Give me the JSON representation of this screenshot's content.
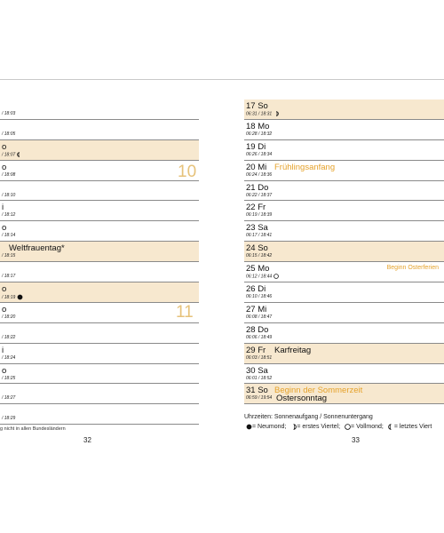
{
  "left_page": {
    "rows": [
      {
        "day": "",
        "sun": "/ 18:03",
        "hl": false
      },
      {
        "day": "",
        "sun": "/ 18:05",
        "hl": false
      },
      {
        "day": "o",
        "sun": "/ 18:07",
        "hl": true,
        "moon": "waning"
      },
      {
        "day": "o",
        "sun": "/ 18:08",
        "hl": false
      },
      {
        "day": "",
        "sun": "/ 18:10",
        "hl": false
      },
      {
        "day": "i",
        "sun": "/ 18:12",
        "hl": false
      },
      {
        "day": "o",
        "sun": "/ 18:14",
        "hl": false
      },
      {
        "day": "",
        "event": "Weltfrauentag*",
        "sun": "/ 18:15",
        "hl": true
      },
      {
        "day": "",
        "sun": "/ 18:17",
        "hl": false
      },
      {
        "day": "o",
        "sun": "/ 18:19",
        "hl": true,
        "moon": "new"
      },
      {
        "day": "o",
        "sun": "/ 18:20",
        "hl": false
      },
      {
        "day": "",
        "sun": "/ 18:22",
        "hl": false
      },
      {
        "day": "i",
        "sun": "/ 18:24",
        "hl": false
      },
      {
        "day": "o",
        "sun": "/ 18:25",
        "hl": false
      },
      {
        "day": "",
        "sun": "/ 18:27",
        "hl": false
      },
      {
        "day": "",
        "sun": "/ 18:29",
        "hl": false
      }
    ],
    "week_numbers": {
      "w10": "10",
      "w11": "11"
    },
    "footnote": "g nicht in allen Bundesländern",
    "page_number": "32"
  },
  "right_page": {
    "rows": [
      {
        "day": "17 So",
        "sun": "06:31 / 18:31",
        "hl": true,
        "moon": "first-quarter"
      },
      {
        "day": "18 Mo",
        "sun": "06:28 / 18:32",
        "hl": false
      },
      {
        "day": "19 Di",
        "sun": "06:26 / 18:34",
        "hl": false
      },
      {
        "day": "20 Mi",
        "event": "Frühlingsanfang",
        "event_color": "orange",
        "sun": "06:24 / 18:36",
        "hl": false
      },
      {
        "day": "21 Do",
        "sun": "06:22 / 18:37",
        "hl": false
      },
      {
        "day": "22 Fr",
        "sun": "06:19 / 18:39",
        "hl": false
      },
      {
        "day": "23 Sa",
        "sun": "06:17 / 18:41",
        "hl": false
      },
      {
        "day": "24 So",
        "sun": "06:15 / 18:42",
        "hl": true
      },
      {
        "day": "25 Mo",
        "note": "Beginn Osterferien",
        "sun": "06:12 / 18:44",
        "hl": false,
        "moon": "full"
      },
      {
        "day": "26 Di",
        "sun": "06:10 / 18:46",
        "hl": false
      },
      {
        "day": "27 Mi",
        "sun": "06:08 / 18:47",
        "hl": false
      },
      {
        "day": "28 Do",
        "sun": "06:06 / 18:49",
        "hl": false
      },
      {
        "day": "29 Fr",
        "event": "Karfreitag",
        "event_color": "black",
        "sun": "06:03 / 18:51",
        "hl": true
      },
      {
        "day": "30 Sa",
        "sun": "06:01 / 18:52",
        "hl": false
      },
      {
        "day": "31 So",
        "event": "Beginn der Sommerzeit",
        "event_color": "orange",
        "second": "Ostersonntag",
        "sun": "06:59 / 19:54",
        "hl": true
      }
    ],
    "legend_title": "Uhrzeiten: Sonnenaufgang / Sonnenuntergang",
    "legend_items": [
      {
        "symbol": "new",
        "text": "= Neumond;"
      },
      {
        "symbol": "first-quarter",
        "text": "= erstes Viertel;"
      },
      {
        "symbol": "full",
        "text": "= Vollmond;"
      },
      {
        "symbol": "last-quarter",
        "text": "= letztes Viert"
      }
    ],
    "page_number": "33"
  },
  "colors": {
    "highlight": "#f7e8cf",
    "accent": "#e5a22b",
    "week_number": "#e6c27a"
  }
}
